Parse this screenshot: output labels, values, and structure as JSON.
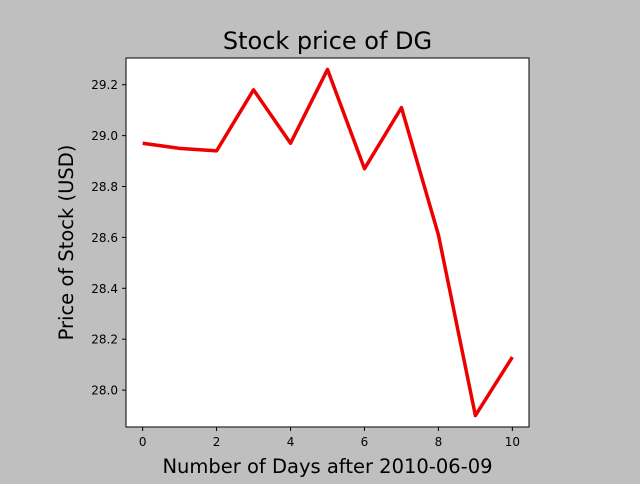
{
  "chart_data": {
    "type": "line",
    "title": "Stock price of DG",
    "xlabel": "Number of Days after 2010-06-09",
    "ylabel": "Price of Stock (USD)",
    "x": [
      0,
      1,
      2,
      3,
      4,
      5,
      6,
      7,
      8,
      9,
      10
    ],
    "series": [
      {
        "values": [
          28.97,
          28.95,
          28.94,
          29.18,
          28.97,
          29.26,
          28.87,
          29.11,
          28.61,
          27.9,
          28.13
        ],
        "color": "#ee0000"
      }
    ],
    "xlim": [
      -0.45,
      10.45
    ],
    "ylim": [
      27.855,
      29.305
    ],
    "xticks": [
      0,
      2,
      4,
      6,
      8,
      10
    ],
    "xtick_labels": [
      "0",
      "2",
      "4",
      "6",
      "8",
      "10"
    ],
    "yticks": [
      28.0,
      28.2,
      28.4,
      28.6,
      28.8,
      29.0,
      29.2
    ],
    "ytick_labels": [
      "28.0",
      "28.2",
      "28.4",
      "28.6",
      "28.8",
      "29.0",
      "29.2"
    ],
    "grid": false,
    "background": "#bfbfbf",
    "plot_background": "#ffffff"
  }
}
